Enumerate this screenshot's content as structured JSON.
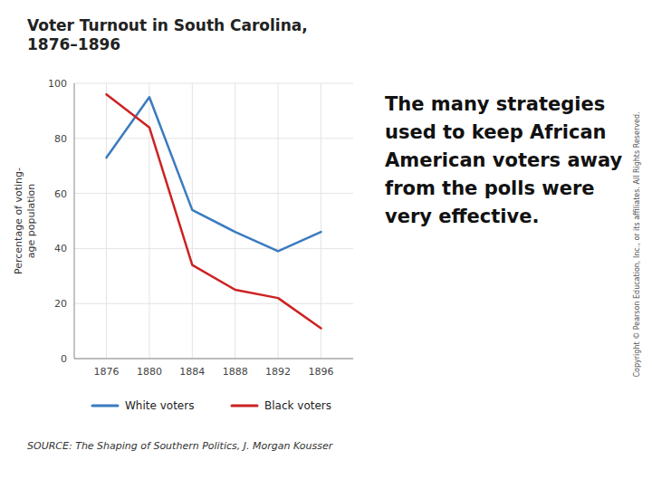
{
  "chart_data": {
    "type": "line",
    "title": "Voter Turnout in South Carolina,\n1876–1896",
    "ylabel": "Percentage of voting-\nage population",
    "x": [
      1876,
      1880,
      1884,
      1888,
      1892,
      1896
    ],
    "series": [
      {
        "name": "White voters",
        "color": "#3a7bbf",
        "values": [
          73,
          95,
          54,
          46,
          39,
          46
        ]
      },
      {
        "name": "Black voters",
        "color": "#cc2222",
        "values": [
          96,
          84,
          34,
          25,
          22,
          11
        ]
      }
    ],
    "xlim": [
      1873,
      1899
    ],
    "xticks": [
      1876,
      1880,
      1884,
      1888,
      1892,
      1896
    ],
    "ylim": [
      0,
      100
    ],
    "yticks": [
      0,
      20,
      40,
      60,
      80,
      100
    ],
    "grid": true,
    "legend": "bottom",
    "annotations": [
      "The many strategies\nused to keep African\nAmerican voters away\nfrom the polls were\nvery effective.",
      "SOURCE: The Shaping of Southern Politics, J. Morgan Kousser",
      "Copyright © Pearson Education, Inc., or its affiliates. All Rights Reserved."
    ]
  }
}
